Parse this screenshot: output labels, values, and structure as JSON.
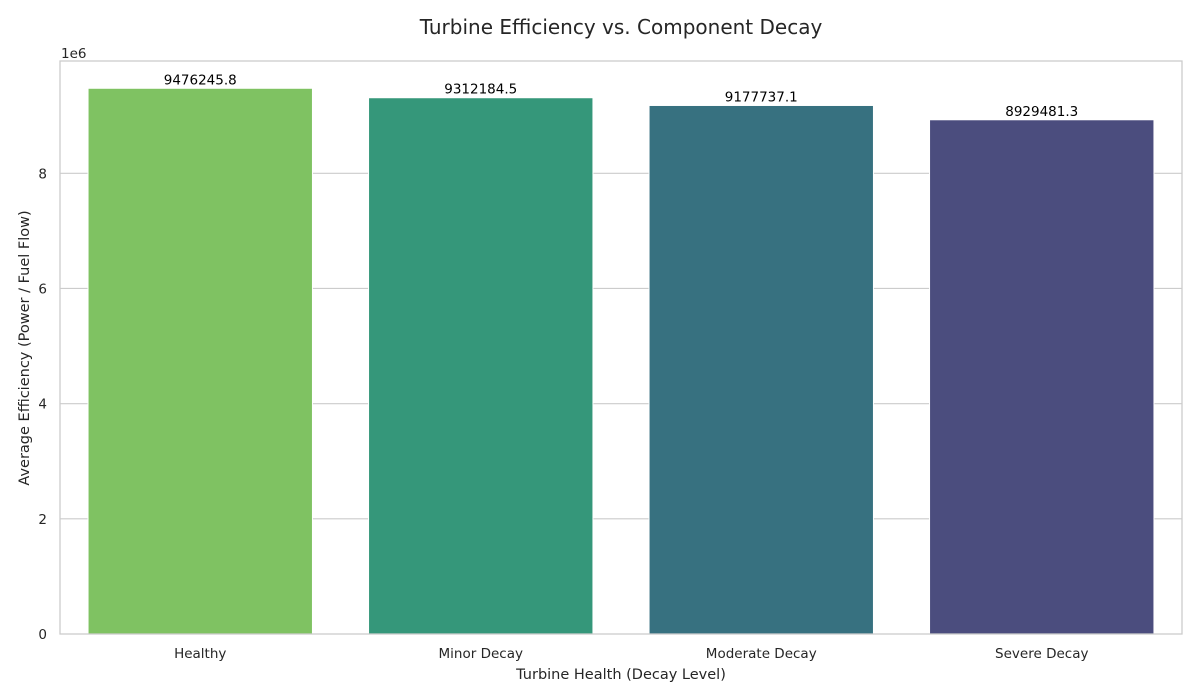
{
  "chart_data": {
    "type": "bar",
    "title": "Turbine Efficiency vs. Component Decay",
    "xlabel": "Turbine Health (Decay Level)",
    "ylabel": "Average Efficiency (Power / Fuel Flow)",
    "y_offset_text": "1e6",
    "categories": [
      "Healthy",
      "Minor Decay",
      "Moderate Decay",
      "Severe Decay"
    ],
    "values": [
      9476245.8,
      9312184.5,
      9177737.1,
      8929481.3
    ],
    "value_labels": [
      "9476245.8",
      "9312184.5",
      "9177737.1",
      "8929481.3"
    ],
    "colors": [
      "#7fc262",
      "#35977a",
      "#377180",
      "#4b4d7e"
    ],
    "ylim": [
      0,
      9950000
    ],
    "yticks": [
      0,
      2000000,
      4000000,
      6000000,
      8000000
    ],
    "ytick_labels": [
      "0",
      "2",
      "4",
      "6",
      "8"
    ],
    "grid": true,
    "legend": "none"
  }
}
